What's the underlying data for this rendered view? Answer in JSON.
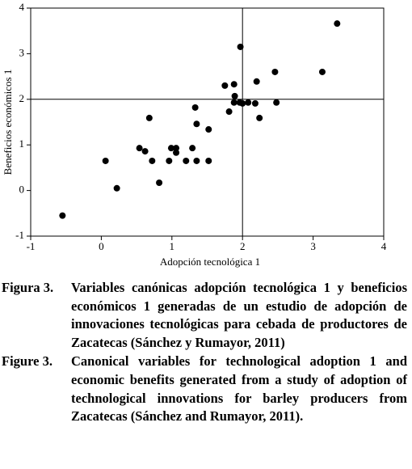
{
  "chart_data": {
    "type": "scatter",
    "x_label": "Adopción tecnológica 1",
    "y_label": "Beneficios económicos 1",
    "x": [
      -0.55,
      0.06,
      0.22,
      0.54,
      0.62,
      0.68,
      0.72,
      0.82,
      0.96,
      0.99,
      1.06,
      1.06,
      1.2,
      1.29,
      1.33,
      1.35,
      1.35,
      1.52,
      1.52,
      1.75,
      1.81,
      1.88,
      1.89,
      1.88,
      1.96,
      1.97,
      2.0,
      2.08,
      2.18,
      2.2,
      2.24,
      2.46,
      2.48,
      3.13,
      3.34
    ],
    "values": [
      -0.55,
      0.65,
      0.05,
      0.93,
      0.86,
      1.59,
      0.65,
      0.17,
      0.65,
      0.93,
      0.93,
      0.83,
      0.65,
      0.93,
      1.82,
      1.46,
      0.65,
      0.65,
      1.34,
      2.3,
      1.73,
      2.33,
      2.07,
      1.93,
      1.93,
      3.15,
      1.91,
      1.93,
      1.91,
      2.39,
      1.59,
      2.6,
      1.93,
      2.6,
      3.66
    ],
    "color": "#000000",
    "xlim": [
      -1,
      4
    ],
    "xticks": [
      -1,
      0,
      1,
      2,
      3,
      4
    ],
    "ylim": [
      -1,
      4
    ],
    "yticks": [
      -1,
      0,
      1,
      2,
      3,
      4
    ],
    "reference_lines": {
      "x": 2,
      "y": 2
    },
    "grid": false
  },
  "captions": [
    {
      "label": "Figura 3.",
      "text": "Variables canónicas adopción tecnológica 1 y beneficios económicos 1 generadas de un estudio de adopción de innovaciones tecnológicas para cebada de productores de Zacatecas (Sánchez y Rumayor, 2011)"
    },
    {
      "label": "Figure 3.",
      "text": "Canonical variables for technological adoption 1 and economic benefits generated from a study of adoption of technological innovations for barley producers from Zacatecas (Sánchez and Rumayor, 2011)."
    }
  ]
}
